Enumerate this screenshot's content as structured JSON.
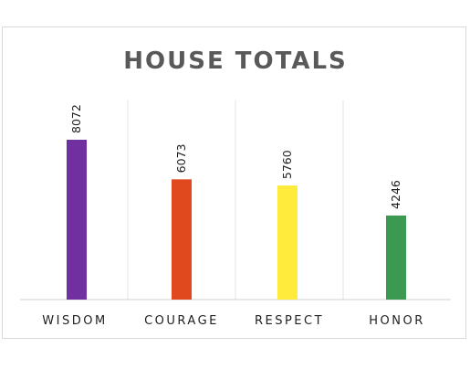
{
  "chart_data": {
    "type": "bar",
    "title": "HOUSE TOTALS",
    "xlabel": "",
    "ylabel": "",
    "categories": [
      "WISDOM",
      "COURAGE",
      "RESPECT",
      "HONOR"
    ],
    "values": [
      8072,
      6073,
      5760,
      4246
    ],
    "colors": [
      "#7030a0",
      "#e0481e",
      "#ffeb3b",
      "#3c9a50"
    ],
    "ylim": [
      0,
      10000
    ],
    "grid": false,
    "legend": "none",
    "data_labels": true
  }
}
